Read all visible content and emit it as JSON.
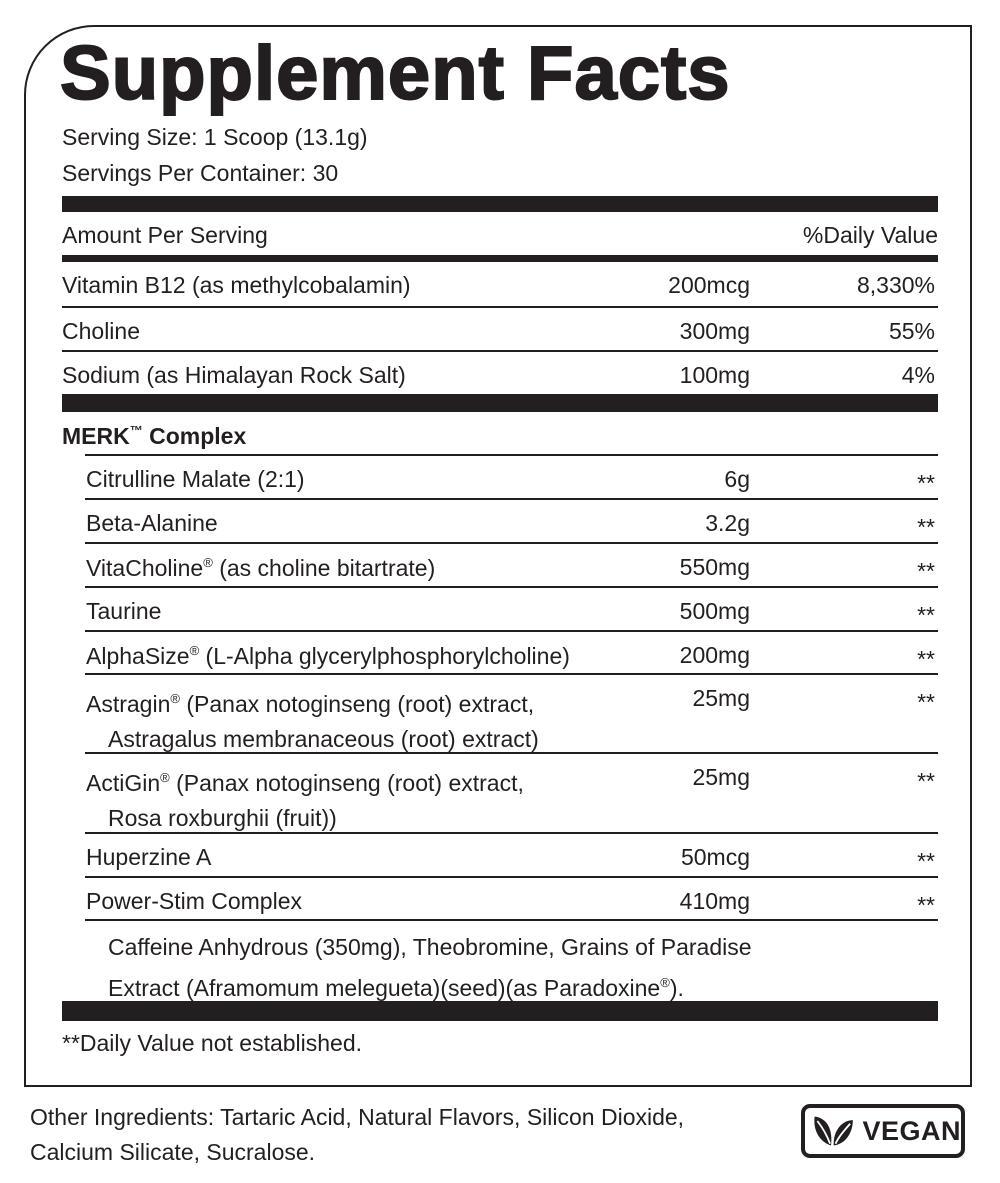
{
  "title": "Supplement Facts",
  "serving_size": "Serving Size: 1 Scoop (13.1g)",
  "servings_per_container": "Servings Per Container: 30",
  "header": {
    "amount": "Amount Per Serving",
    "dv": "%Daily Value"
  },
  "nutrients": [
    {
      "name": "Vitamin B12 (as methylcobalamin)",
      "amount": "200mcg",
      "dv": "8,330%"
    },
    {
      "name": "Choline",
      "amount": "300mg",
      "dv": "55%"
    },
    {
      "name": "Sodium (as Himalayan Rock Salt)",
      "amount": "100mg",
      "dv": "4%"
    }
  ],
  "blend": {
    "name": "MERK",
    "tm": "™",
    "suffix": " Complex"
  },
  "ingredients": [
    {
      "name": "Citrulline Malate (2:1)",
      "amount": "6g",
      "dv": "**"
    },
    {
      "name": "Beta-Alanine",
      "amount": "3.2g",
      "dv": "**"
    },
    {
      "name": "VitaCholine",
      "reg": "®",
      "rest": " (as choline bitartrate)",
      "amount": "550mg",
      "dv": "**"
    },
    {
      "name": "Taurine",
      "amount": "500mg",
      "dv": "**"
    },
    {
      "name": "AlphaSize",
      "reg": "®",
      "rest": " (L-Alpha glycerylphosphorylcholine)",
      "amount": "200mg",
      "dv": "**"
    },
    {
      "name": "Astragin",
      "reg": "®",
      "rest": " (Panax notoginseng (root) extract,",
      "cont": "Astragalus membranaceous (root) extract)",
      "amount": "25mg",
      "dv": "**"
    },
    {
      "name": "ActiGin",
      "reg": "®",
      "rest": " (Panax notoginseng (root) extract,",
      "cont": "Rosa roxburghii (fruit))",
      "amount": "25mg",
      "dv": "**"
    },
    {
      "name": "Huperzine A",
      "amount": "50mcg",
      "dv": "**"
    },
    {
      "name": "Power-Stim Complex",
      "amount": "410mg",
      "dv": "**"
    }
  ],
  "power_stim_detail": {
    "line1": "Caffeine Anhydrous (350mg), Theobromine, Grains of Paradise",
    "line2": "Extract (Aframomum melegueta)(seed)(as Paradoxine",
    "reg": "®",
    "end": ")."
  },
  "footnote": "**Daily Value not established.",
  "other_ingredients": "Other Ingredients: Tartaric Acid, Natural Flavors, Silicon Dioxide, Calcium Silicate, Sucralose.",
  "badge": {
    "label": "VEGAN",
    "icon": "leaf-icon"
  }
}
